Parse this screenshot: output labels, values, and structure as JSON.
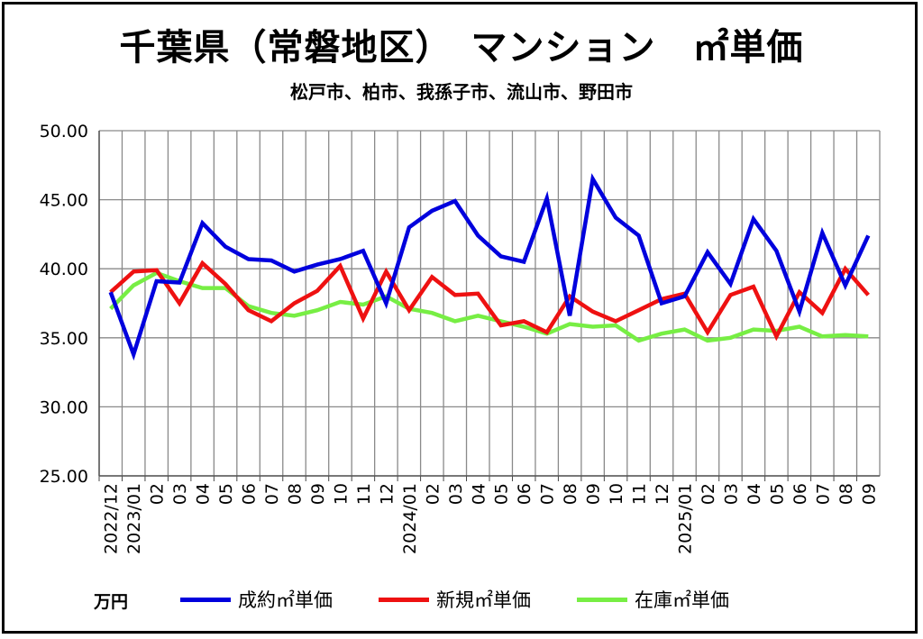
{
  "chart_data": {
    "type": "line",
    "title": "千葉県（常磐地区）　マンション　㎡単価",
    "subtitle": "松戸市、柏市、我孫子市、流山市、野田市",
    "ylabel": "万円",
    "ylim": [
      25,
      50
    ],
    "yticks": [
      "25.00",
      "30.00",
      "35.00",
      "40.00",
      "45.00",
      "50.00"
    ],
    "categories": [
      "2022/12",
      "2023/01",
      "02",
      "03",
      "04",
      "05",
      "06",
      "07",
      "08",
      "09",
      "10",
      "11",
      "12",
      "2024/01",
      "02",
      "03",
      "04",
      "05",
      "06",
      "07",
      "08",
      "09",
      "10",
      "11",
      "12",
      "2025/01",
      "02",
      "03",
      "04",
      "05",
      "06",
      "07",
      "08",
      "09"
    ],
    "grid": true,
    "series": [
      {
        "name": "成約㎡単価",
        "color": "#0000dd",
        "values": [
          38.3,
          33.8,
          39.1,
          39.0,
          43.3,
          41.6,
          40.7,
          40.6,
          39.8,
          40.3,
          40.7,
          41.3,
          37.5,
          43.0,
          44.2,
          44.9,
          42.4,
          40.9,
          40.5,
          45.1,
          36.6,
          46.5,
          43.7,
          42.4,
          37.5,
          38.0,
          41.2,
          38.9,
          43.6,
          41.3,
          36.9,
          42.6,
          38.8,
          42.4
        ]
      },
      {
        "name": "新規㎡単価",
        "color": "#ee1111",
        "values": [
          38.3,
          39.8,
          39.9,
          37.5,
          40.4,
          38.9,
          37.0,
          36.2,
          37.5,
          38.4,
          40.2,
          36.4,
          39.8,
          37.0,
          39.4,
          38.1,
          38.2,
          35.9,
          36.2,
          35.4,
          38.0,
          36.9,
          36.2,
          37.0,
          37.8,
          38.2,
          35.4,
          38.1,
          38.7,
          35.1,
          38.3,
          36.8,
          40.0,
          38.1
        ]
      },
      {
        "name": "在庫㎡単価",
        "color": "#77ee44",
        "values": [
          37.1,
          38.8,
          39.7,
          39.1,
          38.6,
          38.6,
          37.3,
          36.8,
          36.6,
          37.0,
          37.6,
          37.4,
          38.0,
          37.1,
          36.8,
          36.2,
          36.6,
          36.2,
          35.8,
          35.3,
          36.0,
          35.8,
          35.9,
          34.8,
          35.3,
          35.6,
          34.8,
          35.0,
          35.6,
          35.5,
          35.8,
          35.1,
          35.2,
          35.1
        ]
      }
    ]
  }
}
